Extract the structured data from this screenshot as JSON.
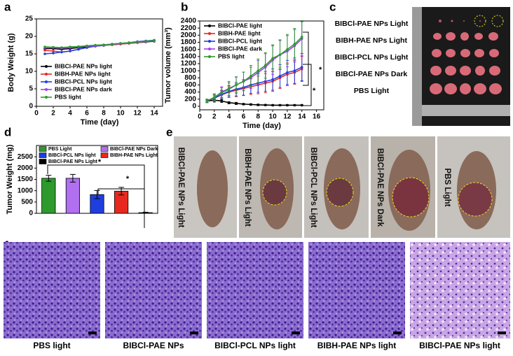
{
  "panel_labels": [
    "a",
    "b",
    "c",
    "d",
    "e",
    "f"
  ],
  "chart_data": [
    {
      "type": "line",
      "xlabel": "Time (day)",
      "ylabel": "Body Weight (g)",
      "xlim": [
        0,
        15
      ],
      "xticks": [
        0,
        2,
        4,
        6,
        8,
        10,
        12,
        14
      ],
      "ylim": [
        0,
        25
      ],
      "yticks": [
        0,
        5,
        10,
        15,
        20,
        25
      ],
      "legend": "lower left",
      "x": [
        1,
        2,
        3,
        4,
        5,
        6,
        7,
        8,
        9,
        10,
        11,
        12,
        13,
        14
      ],
      "series": [
        {
          "name": "BIBCl-PAE NPs light",
          "color": "#000000",
          "values": [
            16.5,
            16.5,
            16.3,
            16.5,
            16.8,
            17,
            17.2,
            17.5,
            17.6,
            17.8,
            18,
            18.2,
            18.4,
            18.6
          ]
        },
        {
          "name": "BIBH-PAE NPs light",
          "color": "#e8281e",
          "values": [
            16,
            15.8,
            15.5,
            15.8,
            16.3,
            16.8,
            17.2,
            17.4,
            17.6,
            17.8,
            18,
            18.2,
            18.5,
            18.8
          ]
        },
        {
          "name": "BIBCl-PCL NPs light",
          "color": "#1f3ee0",
          "values": [
            15,
            15.2,
            15.5,
            15.8,
            16.3,
            16.8,
            17.2,
            17.4,
            17.8,
            18,
            18.2,
            18.5,
            18.7,
            18.9
          ]
        },
        {
          "name": "BIBCl-PAE NPs dark",
          "color": "#a040f0",
          "values": [
            16.8,
            16.8,
            16.6,
            16.8,
            17,
            17.2,
            17.3,
            17.5,
            17.7,
            17.9,
            18.1,
            18.3,
            18.5,
            18.7
          ]
        },
        {
          "name": "PBS light",
          "color": "#2e9a2e",
          "values": [
            17,
            16.9,
            16.8,
            17,
            17.1,
            17.3,
            17.5,
            17.6,
            17.8,
            18,
            18.2,
            18.4,
            18.6,
            18.8
          ]
        }
      ]
    },
    {
      "type": "line",
      "xlabel": "Time (day)",
      "ylabel": "Tumor volume (mm³)",
      "xlim": [
        0,
        17
      ],
      "xticks": [
        0,
        2,
        4,
        6,
        8,
        10,
        12,
        14,
        16
      ],
      "ylim": [
        -100,
        2400
      ],
      "yticks": [
        0,
        200,
        400,
        600,
        800,
        1000,
        1200,
        1400,
        1600,
        1800,
        2000,
        2200,
        2400
      ],
      "legend": "upper left",
      "annotations": [
        "*",
        "*"
      ],
      "x": [
        1,
        2,
        3,
        4,
        5,
        6,
        7,
        8,
        9,
        10,
        11,
        12,
        13,
        14
      ],
      "series": [
        {
          "name": "BIBCl-PAE light",
          "color": "#000000",
          "values": [
            150,
            170,
            150,
            100,
            80,
            60,
            50,
            40,
            35,
            30,
            30,
            30,
            30,
            30
          ],
          "errors": [
            40,
            50,
            40,
            30,
            30,
            20,
            20,
            20,
            15,
            15,
            15,
            15,
            15,
            15
          ]
        },
        {
          "name": "BIBH-PAE light",
          "color": "#e8281e",
          "values": [
            150,
            230,
            320,
            400,
            450,
            500,
            550,
            600,
            650,
            700,
            800,
            900,
            950,
            1050
          ],
          "errors": [
            40,
            80,
            120,
            150,
            180,
            200,
            220,
            250,
            270,
            280,
            300,
            320,
            330,
            350
          ]
        },
        {
          "name": "BIBCl-PCL light",
          "color": "#1f3ee0",
          "values": [
            150,
            230,
            330,
            420,
            480,
            530,
            600,
            650,
            700,
            750,
            850,
            950,
            1000,
            1100
          ],
          "errors": [
            40,
            80,
            120,
            160,
            190,
            220,
            240,
            260,
            280,
            300,
            320,
            340,
            360,
            380
          ]
        },
        {
          "name": "BIBCl-PAE dark",
          "color": "#a040f0",
          "values": [
            150,
            250,
            400,
            500,
            600,
            700,
            800,
            950,
            1100,
            1300,
            1450,
            1550,
            1700,
            1900
          ],
          "errors": [
            50,
            100,
            150,
            200,
            230,
            260,
            300,
            340,
            380,
            400,
            420,
            440,
            460,
            480
          ]
        },
        {
          "name": "PBS light",
          "color": "#2e9a2e",
          "values": [
            150,
            250,
            380,
            480,
            600,
            700,
            850,
            1000,
            1150,
            1350,
            1450,
            1600,
            1750,
            1950
          ],
          "errors": [
            50,
            90,
            140,
            180,
            220,
            260,
            300,
            330,
            360,
            380,
            400,
            420,
            440,
            460
          ]
        }
      ]
    },
    {
      "type": "bar",
      "ylabel": "Tumor Weight (mg)",
      "ylim": [
        0,
        3000
      ],
      "yticks": [
        0,
        500,
        1000,
        1500,
        2000,
        2500
      ],
      "annotations": [
        "*",
        "*"
      ],
      "series": [
        {
          "name": "PBS Light",
          "color": "#2e9a2e",
          "values": [
            1550
          ],
          "errors": [
            130
          ]
        },
        {
          "name": "BIBCl-PAE NPs Dark",
          "color": "#b070f0",
          "values": [
            1550
          ],
          "errors": [
            170
          ]
        },
        {
          "name": "BIBCl-PCL NPs light",
          "color": "#1f3ee0",
          "values": [
            830
          ],
          "errors": [
            180
          ]
        },
        {
          "name": "BIBH-PAE NPs Light",
          "color": "#e8281e",
          "values": [
            980
          ],
          "errors": [
            170
          ]
        },
        {
          "name": "BIBCl-PAE NPs Light",
          "color": "#000000",
          "values": [
            30
          ],
          "errors": [
            20
          ]
        }
      ]
    }
  ],
  "photo_c": {
    "labels": [
      "BIBCl-PAE NPs Light",
      "BIBH-PAE NPs Light",
      "BIBCl-PCL NPs Light",
      "BIBCl-PAE NPs Dark",
      "PBS Light"
    ]
  },
  "photo_e": {
    "labels": [
      "BIBCl-PAE NPs Light",
      "BIBH-PAE NPs Light",
      "BIBCl-PCL NPs Light",
      "BIBCl-PAE NPs Dark",
      "PBS Light"
    ]
  },
  "photo_f": {
    "labels": [
      "PBS light",
      "BIBCl-PAE NPs",
      "BIBCl-PCL NPs light",
      "BIBH-PAE NPs light",
      "BIBCl-PAE NPs light"
    ]
  }
}
